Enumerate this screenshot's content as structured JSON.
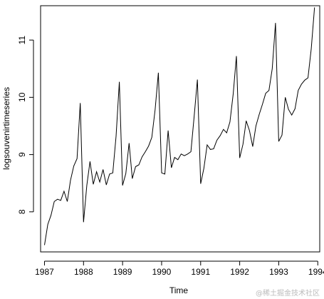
{
  "chart_data": {
    "type": "line",
    "title": "",
    "xlabel": "Time",
    "ylabel": "logsouvenirtimeseries",
    "xlim": [
      1986.9,
      1994.05
    ],
    "ylim": [
      7.3,
      11.6
    ],
    "x_ticks": [
      1987,
      1988,
      1989,
      1990,
      1991,
      1992,
      1993,
      1994
    ],
    "x_tick_labels": [
      "1987",
      "1988",
      "1989",
      "1990",
      "1991",
      "1992",
      "1993",
      "1994"
    ],
    "y_ticks": [
      8,
      9,
      10,
      11
    ],
    "y_tick_labels": [
      "8",
      "9",
      "10",
      "11"
    ],
    "grid": false,
    "legend": "none",
    "x_start": 1987.0,
    "x_step": 0.08333,
    "series": [
      {
        "color": "#000000",
        "values": [
          7.42,
          7.78,
          7.94,
          8.18,
          8.22,
          8.2,
          8.36,
          8.18,
          8.55,
          8.8,
          8.93,
          9.9,
          7.82,
          8.46,
          8.88,
          8.48,
          8.7,
          8.52,
          8.74,
          8.47,
          8.66,
          8.68,
          9.32,
          10.27,
          8.46,
          8.67,
          9.2,
          8.58,
          8.79,
          8.82,
          8.96,
          9.05,
          9.15,
          9.3,
          9.78,
          10.43,
          8.68,
          8.66,
          9.42,
          8.77,
          8.95,
          8.91,
          9.01,
          8.98,
          9.01,
          9.05,
          9.66,
          10.31,
          8.49,
          8.76,
          9.17,
          9.09,
          9.1,
          9.25,
          9.33,
          9.44,
          9.38,
          9.57,
          10.06,
          10.72,
          8.94,
          9.18,
          9.59,
          9.42,
          9.14,
          9.5,
          9.7,
          9.88,
          10.07,
          10.12,
          10.5,
          11.3,
          9.23,
          9.34,
          10.0,
          9.79,
          9.69,
          9.8,
          10.12,
          10.23,
          10.3,
          10.34,
          10.85,
          11.57
        ]
      }
    ]
  },
  "watermark": "@稀土掘金技术社区"
}
